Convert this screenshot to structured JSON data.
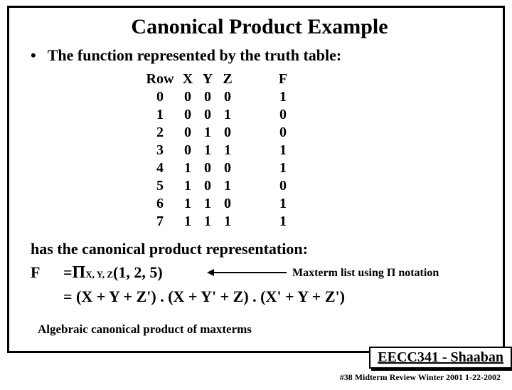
{
  "title": "Canonical Product Example",
  "bullet": "•",
  "intro": "The function represented by the truth table:",
  "table": {
    "headers": {
      "row": "Row",
      "x": "X",
      "y": "Y",
      "z": "Z",
      "f": "F"
    },
    "rows": [
      {
        "r": "0",
        "x": "0",
        "y": "0",
        "z": "0",
        "f": "1"
      },
      {
        "r": "1",
        "x": "0",
        "y": "0",
        "z": "1",
        "f": "0"
      },
      {
        "r": "2",
        "x": "0",
        "y": "1",
        "z": "0",
        "f": "0"
      },
      {
        "r": "3",
        "x": "0",
        "y": "1",
        "z": "1",
        "f": "1"
      },
      {
        "r": "4",
        "x": "1",
        "y": "0",
        "z": "0",
        "f": "1"
      },
      {
        "r": "5",
        "x": "1",
        "y": "0",
        "z": "1",
        "f": "0"
      },
      {
        "r": "6",
        "x": "1",
        "y": "1",
        "z": "0",
        "f": "1"
      },
      {
        "r": "7",
        "x": "1",
        "y": "1",
        "z": "1",
        "f": "1"
      }
    ]
  },
  "canonical_intro": "has the canonical product representation:",
  "eq": {
    "lhs": "F",
    "eq1_prefix": "= ",
    "prod_symbol": "Π",
    "sub": " X, Y, Z ",
    "args": "(1, 2, 5)",
    "eq2": "= (X + Y + Z') . (X + Y' + Z) . (X' + Y + Z')"
  },
  "maxterm_label": "Maxterm list using  Π  notation",
  "algebraic_note": "Algebraic canonical product of maxterms",
  "course": "EECC341 - Shaaban",
  "footer": "#38   Midterm Review  Winter 2001  1-22-2002"
}
